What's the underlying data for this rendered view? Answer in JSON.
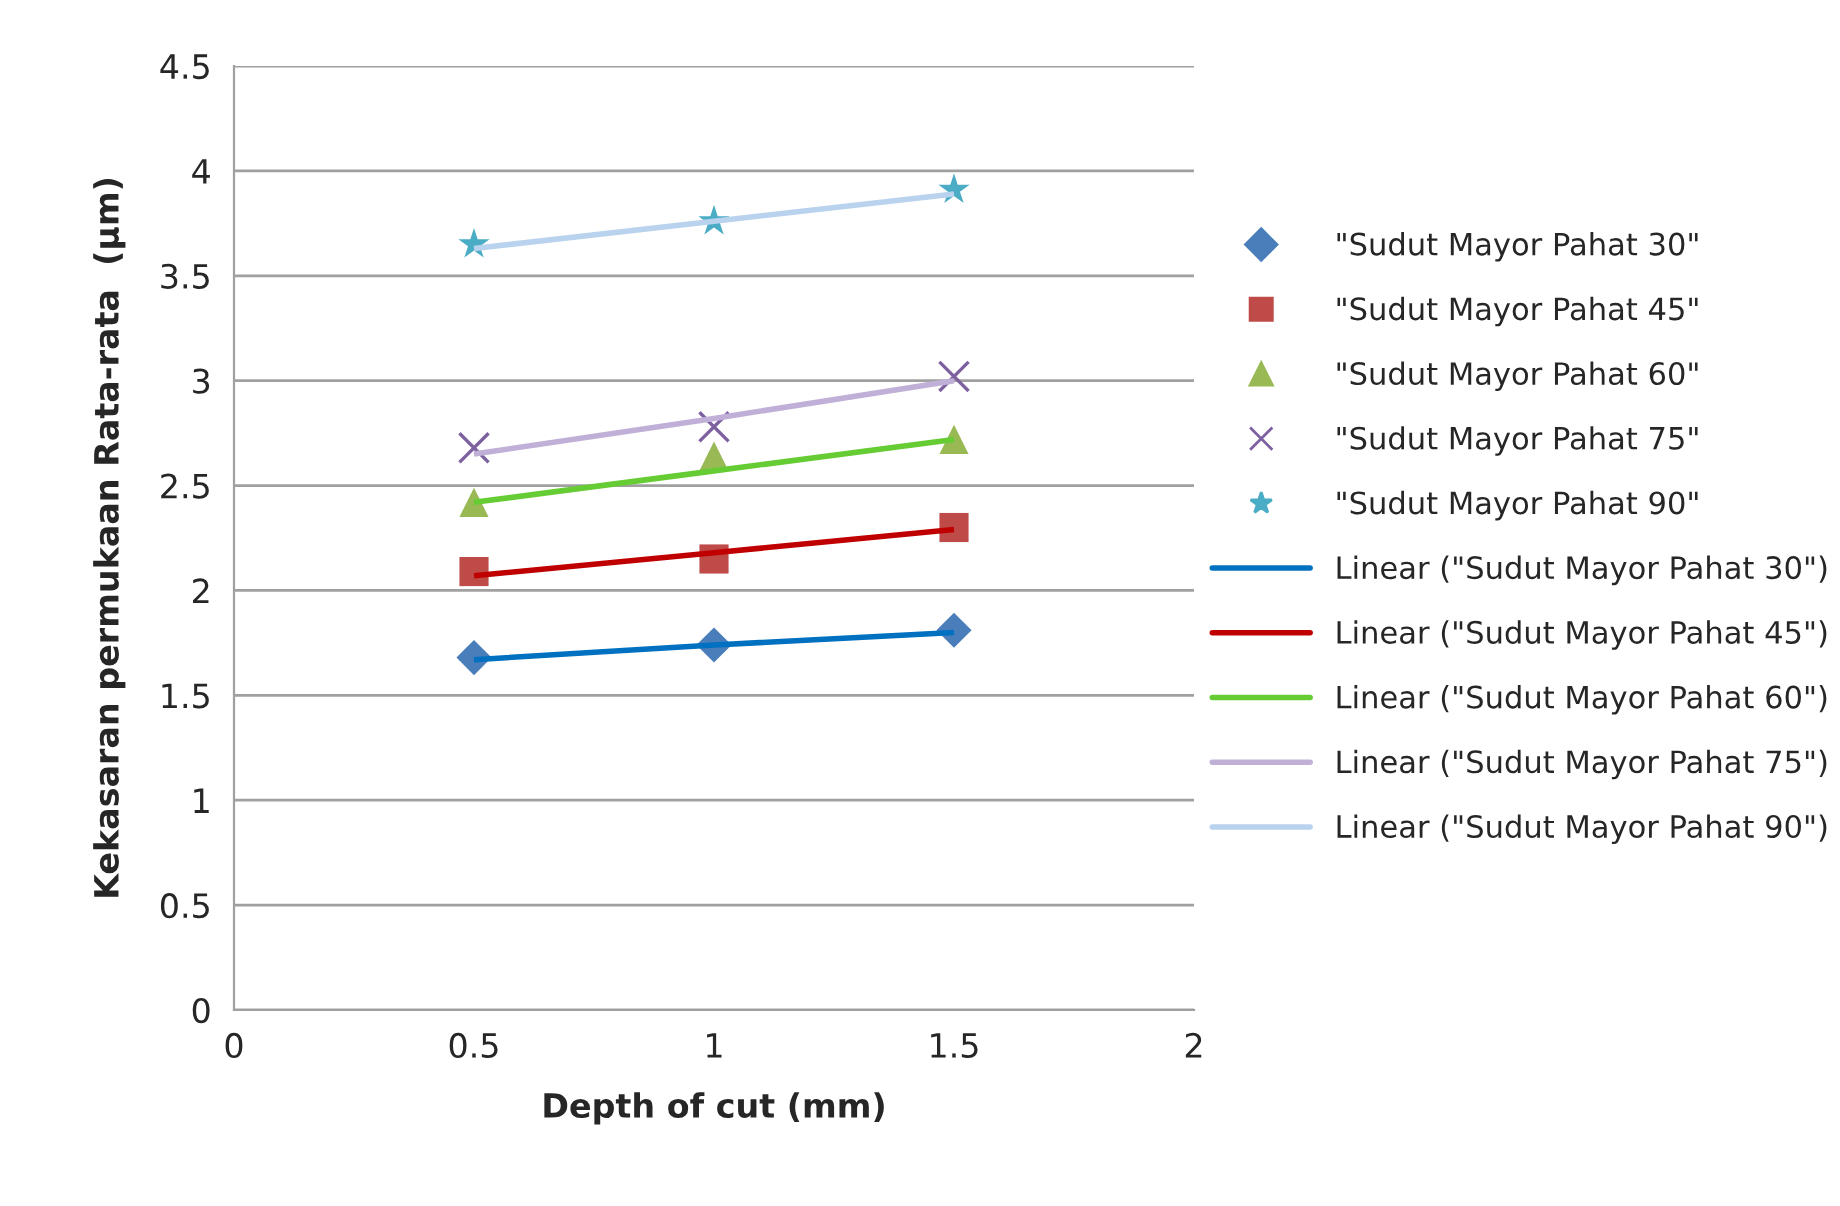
{
  "chart_data": {
    "type": "scatter",
    "xlabel": "Depth of cut (mm)",
    "ylabel": "Kekasaran permukaan Rata-rata  (µm)",
    "xlim": [
      0,
      2
    ],
    "xticks": [
      0,
      0.5,
      1,
      1.5,
      2
    ],
    "ylim": [
      0,
      4.5
    ],
    "yticks": [
      0,
      0.5,
      1,
      1.5,
      2,
      2.5,
      3,
      3.5,
      4,
      4.5
    ],
    "grid": "y",
    "legend": "right",
    "x": [
      0.5,
      1,
      1.5
    ],
    "series": [
      {
        "name": "\"Sudut Mayor Pahat 30\"",
        "color": "#4a7ebb",
        "marker": "diamond",
        "values": [
          1.68,
          1.74,
          1.81
        ]
      },
      {
        "name": "\"Sudut Mayor Pahat 45\"",
        "color": "#be4b48",
        "marker": "square",
        "values": [
          2.09,
          2.15,
          2.3
        ]
      },
      {
        "name": "\"Sudut Mayor Pahat 60\"",
        "color": "#98b954",
        "marker": "triangle",
        "values": [
          2.42,
          2.64,
          2.72
        ]
      },
      {
        "name": "\"Sudut Mayor Pahat 75\"",
        "color": "#7d60a0",
        "marker": "cross",
        "values": [
          2.68,
          2.78,
          3.02
        ]
      },
      {
        "name": "\"Sudut Mayor Pahat 90\"",
        "color": "#4bacc6",
        "marker": "star",
        "values": [
          3.65,
          3.76,
          3.91
        ]
      },
      {
        "name": "Linear (\"Sudut Mayor Pahat 30\")",
        "type": "line",
        "color": "#0070c0",
        "values": [
          1.67,
          1.74,
          1.8
        ]
      },
      {
        "name": "Linear (\"Sudut Mayor Pahat 45\")",
        "type": "line",
        "color": "#c00000",
        "values": [
          2.07,
          2.18,
          2.29
        ]
      },
      {
        "name": "Linear (\"Sudut Mayor Pahat 60\")",
        "type": "line",
        "color": "#66cc33",
        "values": [
          2.42,
          2.57,
          2.72
        ]
      },
      {
        "name": "Linear (\"Sudut Mayor Pahat 75\")",
        "type": "line",
        "color": "#c0b0d8",
        "values": [
          2.65,
          2.82,
          3.0
        ]
      },
      {
        "name": "Linear (\"Sudut Mayor Pahat 90\")",
        "type": "line",
        "color": "#b9d3ee",
        "values": [
          3.63,
          3.76,
          3.89
        ]
      }
    ]
  }
}
